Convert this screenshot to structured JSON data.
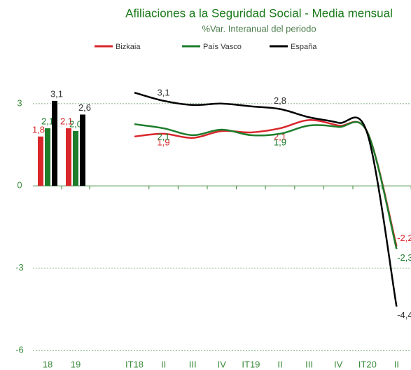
{
  "chart_data": [
    {
      "type": "bar",
      "title": "Afiliaciones a la Seguridad Social - Media mensual",
      "subtitle": "%Var. Interanual del periodo",
      "categories": [
        "18",
        "19"
      ],
      "series": [
        {
          "name": "Bizkaia",
          "color": "#d9262b",
          "values": [
            1.8,
            2.1
          ],
          "value_labels": [
            "1,8",
            "2,1"
          ]
        },
        {
          "name": "País Vasco",
          "color": "#1e7d2b",
          "values": [
            2.1,
            2.0
          ],
          "value_labels": [
            "2,1",
            "2,0"
          ]
        },
        {
          "name": "España",
          "color": "#000000",
          "values": [
            3.1,
            2.6
          ],
          "value_labels": [
            "3,1",
            "2,6"
          ]
        }
      ],
      "ylim": [
        -6.3,
        4.4
      ],
      "yticks": [
        3,
        0,
        -3,
        -6
      ],
      "grid": true
    },
    {
      "type": "line",
      "categories": [
        "IT18",
        "II",
        "III",
        "IV",
        "IT19",
        "II",
        "III",
        "IV",
        "IT20",
        "II"
      ],
      "series": [
        {
          "color": "#d9262b",
          "values": [
            1.8,
            1.9,
            1.75,
            2.0,
            1.95,
            2.1,
            2.4,
            2.2,
            1.95,
            -2.2
          ],
          "value_labels": [
            null,
            "1,9",
            null,
            null,
            null,
            "2,1",
            null,
            null,
            null,
            "-2,2"
          ]
        },
        {
          "color": "#1e7d2b",
          "values": [
            2.25,
            2.1,
            1.85,
            2.05,
            1.85,
            1.9,
            2.2,
            2.15,
            1.95,
            -2.3
          ],
          "value_labels": [
            null,
            "2,1",
            null,
            null,
            null,
            "1,9",
            null,
            null,
            null,
            "-2,3"
          ]
        },
        {
          "color": "#000000",
          "values": [
            3.4,
            3.1,
            2.95,
            3.0,
            2.9,
            2.8,
            2.5,
            2.3,
            1.9,
            -4.4
          ],
          "value_labels": [
            null,
            "3,1",
            null,
            null,
            null,
            "2,8",
            null,
            null,
            null,
            "-4,4"
          ]
        }
      ],
      "ylim": [
        -6.3,
        4.4
      ]
    }
  ]
}
